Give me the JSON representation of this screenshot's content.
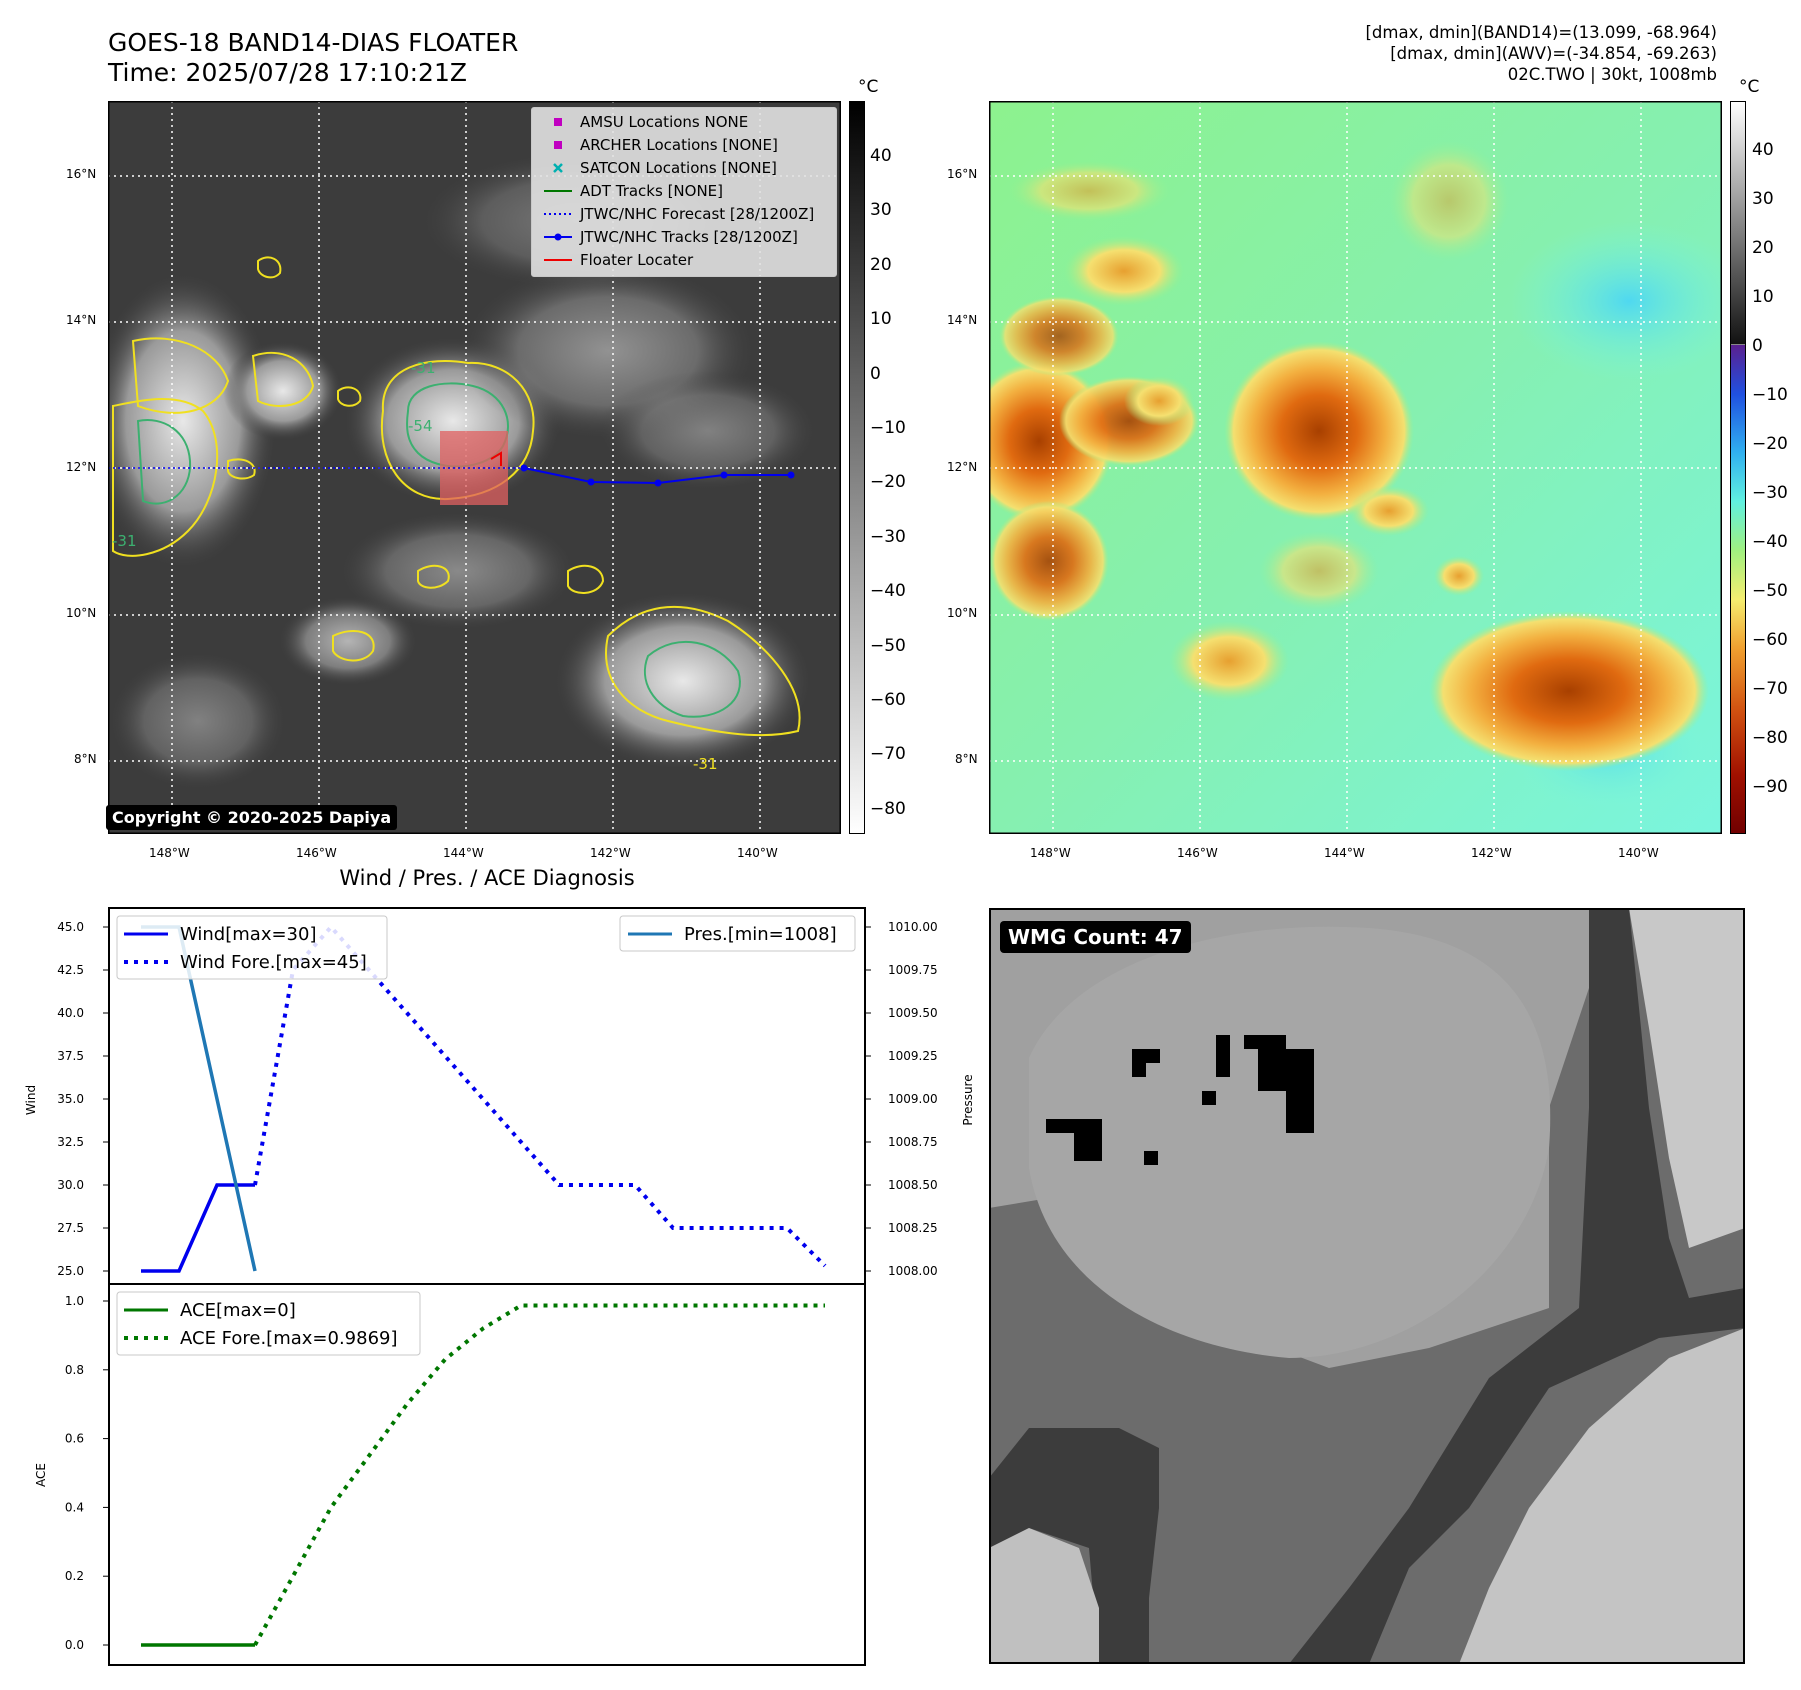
{
  "header": {
    "title_line1": "GOES-18 BAND14-DIAS FLOATER",
    "title_line2": "Time: 2025/07/28 17:10:21Z",
    "info_line1": "[dmax, dmin](BAND14)=(13.099, -68.964)",
    "info_line2": "[dmax, dmin](AWV)=(-34.854, -69.263)",
    "info_line3": "02C.TWO | 30kt, 1008mb"
  },
  "map_left": {
    "lat_labels": [
      "16°N",
      "14°N",
      "12°N",
      "10°N",
      "8°N"
    ],
    "lon_labels": [
      "148°W",
      "146°W",
      "144°W",
      "142°W",
      "140°W"
    ],
    "contour_labels": [
      "-31",
      "-54",
      "-31",
      "-31"
    ],
    "copyright": "Copyright © 2020-2025 Dapiya",
    "legend": [
      {
        "label": "AMSU Locations NONE",
        "color": "#c000c0",
        "marker": "square"
      },
      {
        "label": "ARCHER Locations [NONE]",
        "color": "#c000c0",
        "marker": "square"
      },
      {
        "label": "SATCON Locations [NONE]",
        "color": "#00b0b0",
        "marker": "x"
      },
      {
        "label": "ADT Tracks [NONE]",
        "color": "#007700",
        "marker": "line"
      },
      {
        "label": "JTWC/NHC Forecast [28/1200Z]",
        "color": "#0000ee",
        "marker": "dotted"
      },
      {
        "label": "JTWC/NHC Tracks [28/1200Z]",
        "color": "#0000ee",
        "marker": "line-dot"
      },
      {
        "label": "Floater Locater",
        "color": "#ee0000",
        "marker": "line"
      }
    ],
    "colorbar_unit": "°C",
    "colorbar_ticks": [
      "40",
      "30",
      "20",
      "10",
      "0",
      "−10",
      "−20",
      "−30",
      "−40",
      "−50",
      "−60",
      "−70",
      "−80"
    ]
  },
  "map_right": {
    "lat_labels": [
      "16°N",
      "14°N",
      "12°N",
      "10°N",
      "8°N"
    ],
    "lon_labels": [
      "148°W",
      "146°W",
      "144°W",
      "142°W",
      "140°W"
    ],
    "colorbar_unit": "°C",
    "colorbar_ticks": [
      "40",
      "30",
      "20",
      "10",
      "0",
      "−10",
      "−20",
      "−30",
      "−40",
      "−50",
      "−60",
      "−70",
      "−80",
      "−90"
    ]
  },
  "diag": {
    "title": "Wind / Pres. / ACE Diagnosis",
    "wind_ylabel": "Wind",
    "pres_ylabel": "Pressure",
    "ace_ylabel": "ACE",
    "wind_ticks": [
      "45.0",
      "42.5",
      "40.0",
      "37.5",
      "35.0",
      "32.5",
      "30.0",
      "27.5",
      "25.0"
    ],
    "pres_ticks": [
      "1010.00",
      "1009.75",
      "1009.50",
      "1009.25",
      "1009.00",
      "1008.75",
      "1008.50",
      "1008.25",
      "1008.00"
    ],
    "ace_ticks": [
      "1.0",
      "0.8",
      "0.6",
      "0.4",
      "0.2",
      "0.0"
    ],
    "legend_wind": "Wind[max=30]",
    "legend_wind_fore": "Wind Fore.[max=45]",
    "legend_pres": "Pres.[min=1008]",
    "legend_ace": "ACE[max=0]",
    "legend_ace_fore": "ACE Fore.[max=0.9869]"
  },
  "wmg": {
    "label": "WMG Count: 47"
  },
  "chart_data": [
    {
      "type": "line",
      "title": "Wind / Pres. / ACE Diagnosis",
      "ylabel": "Wind",
      "ylim": [
        24.6,
        45.4
      ],
      "series": [
        {
          "name": "Wind[max=30]",
          "x": [
            0,
            1,
            2,
            3
          ],
          "values": [
            25,
            25,
            30,
            30
          ],
          "color": "#0000ee",
          "style": "solid"
        },
        {
          "name": "Wind Fore.[max=45]",
          "x": [
            3,
            4,
            5,
            6,
            7,
            8,
            9,
            10,
            11,
            12,
            13,
            14,
            15,
            16,
            17,
            18
          ],
          "values": [
            30,
            42.5,
            45,
            42.5,
            40,
            37.5,
            35,
            32.5,
            30,
            30,
            30,
            27.5,
            27.5,
            27.5,
            27.5,
            25.3
          ],
          "color": "#0000ee",
          "style": "dotted"
        }
      ]
    },
    {
      "type": "line",
      "ylabel": "Pressure",
      "ylim": [
        1007.96,
        1010.04
      ],
      "series": [
        {
          "name": "Pres.[min=1008]",
          "x": [
            0,
            1,
            2,
            3
          ],
          "values": [
            1010,
            1010,
            1009,
            1008
          ],
          "color": "#1f77b4",
          "style": "solid"
        }
      ]
    },
    {
      "type": "line",
      "ylabel": "ACE",
      "ylim": [
        -0.03,
        1.03
      ],
      "series": [
        {
          "name": "ACE[max=0]",
          "x": [
            0,
            1,
            2,
            3
          ],
          "values": [
            0,
            0,
            0,
            0
          ],
          "color": "#007700",
          "style": "solid"
        },
        {
          "name": "ACE Fore.[max=0.9869]",
          "x": [
            3,
            4,
            5,
            6,
            7,
            8,
            9,
            10,
            11,
            12,
            13,
            14,
            15,
            16,
            17,
            18
          ],
          "values": [
            0,
            0.2,
            0.4,
            0.55,
            0.7,
            0.83,
            0.92,
            0.9869,
            0.9869,
            0.9869,
            0.9869,
            0.9869,
            0.9869,
            0.9869,
            0.9869,
            0.9869
          ],
          "color": "#007700",
          "style": "dotted"
        }
      ]
    }
  ]
}
